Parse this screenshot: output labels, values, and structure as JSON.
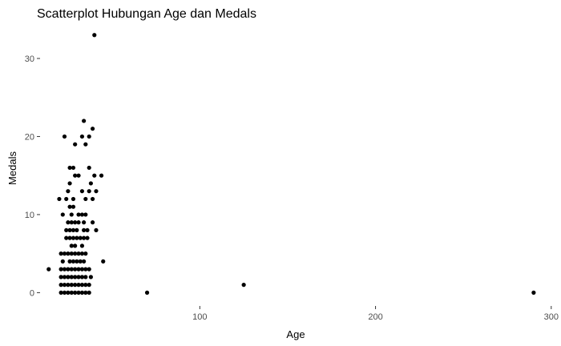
{
  "chart_data": {
    "type": "scatter",
    "title": "Scatterplot Hubungan Age dan Medals",
    "xlabel": "Age",
    "ylabel": "Medals",
    "xlim": [
      10,
      301
    ],
    "ylim": [
      -1.5,
      34
    ],
    "x_ticks": [
      "100",
      "200",
      "300"
    ],
    "y_ticks": [
      "0",
      "10",
      "20",
      "30"
    ],
    "grid": false,
    "legend": "none",
    "point_color": "#000000",
    "tick_color": "#333333",
    "series": [
      {
        "points": [
          [
            40,
            33
          ],
          [
            34,
            22
          ],
          [
            39,
            21
          ],
          [
            33,
            20
          ],
          [
            37,
            20
          ],
          [
            23,
            20
          ],
          [
            29,
            19
          ],
          [
            35,
            19
          ],
          [
            26,
            16
          ],
          [
            28,
            16
          ],
          [
            37,
            16
          ],
          [
            29,
            15
          ],
          [
            31,
            15
          ],
          [
            40,
            15
          ],
          [
            44,
            15
          ],
          [
            26,
            14
          ],
          [
            38,
            14
          ],
          [
            25,
            13
          ],
          [
            33,
            13
          ],
          [
            37,
            13
          ],
          [
            41,
            13
          ],
          [
            20,
            12
          ],
          [
            24,
            12
          ],
          [
            28,
            12
          ],
          [
            35,
            12
          ],
          [
            39,
            12
          ],
          [
            26,
            11
          ],
          [
            28,
            11
          ],
          [
            22,
            10
          ],
          [
            27,
            10
          ],
          [
            31,
            10
          ],
          [
            33,
            10
          ],
          [
            35,
            10
          ],
          [
            25,
            9
          ],
          [
            27,
            9
          ],
          [
            29,
            9
          ],
          [
            31,
            9
          ],
          [
            34,
            9
          ],
          [
            39,
            9
          ],
          [
            24,
            8
          ],
          [
            26,
            8
          ],
          [
            28,
            8
          ],
          [
            30,
            8
          ],
          [
            34,
            8
          ],
          [
            36,
            8
          ],
          [
            41,
            8
          ],
          [
            24,
            7
          ],
          [
            26,
            7
          ],
          [
            28,
            7
          ],
          [
            30,
            7
          ],
          [
            32,
            7
          ],
          [
            34,
            7
          ],
          [
            36,
            7
          ],
          [
            27,
            6
          ],
          [
            29,
            6
          ],
          [
            33,
            6
          ],
          [
            21,
            5
          ],
          [
            23,
            5
          ],
          [
            25,
            5
          ],
          [
            27,
            5
          ],
          [
            29,
            5
          ],
          [
            31,
            5
          ],
          [
            33,
            5
          ],
          [
            35,
            5
          ],
          [
            22,
            4
          ],
          [
            26,
            4
          ],
          [
            28,
            4
          ],
          [
            30,
            4
          ],
          [
            32,
            4
          ],
          [
            34,
            4
          ],
          [
            45,
            4
          ],
          [
            14,
            3
          ],
          [
            21,
            3
          ],
          [
            23,
            3
          ],
          [
            25,
            3
          ],
          [
            27,
            3
          ],
          [
            29,
            3
          ],
          [
            31,
            3
          ],
          [
            33,
            3
          ],
          [
            35,
            3
          ],
          [
            37,
            3
          ],
          [
            21,
            2
          ],
          [
            23,
            2
          ],
          [
            25,
            2
          ],
          [
            27,
            2
          ],
          [
            29,
            2
          ],
          [
            31,
            2
          ],
          [
            33,
            2
          ],
          [
            35,
            2
          ],
          [
            38,
            2
          ],
          [
            21,
            1
          ],
          [
            23,
            1
          ],
          [
            25,
            1
          ],
          [
            27,
            1
          ],
          [
            29,
            1
          ],
          [
            31,
            1
          ],
          [
            33,
            1
          ],
          [
            35,
            1
          ],
          [
            37,
            1
          ],
          [
            125,
            1
          ],
          [
            21,
            0
          ],
          [
            23,
            0
          ],
          [
            25,
            0
          ],
          [
            27,
            0
          ],
          [
            29,
            0
          ],
          [
            31,
            0
          ],
          [
            33,
            0
          ],
          [
            35,
            0
          ],
          [
            37,
            0
          ],
          [
            70,
            0
          ],
          [
            290,
            0
          ]
        ]
      }
    ]
  }
}
